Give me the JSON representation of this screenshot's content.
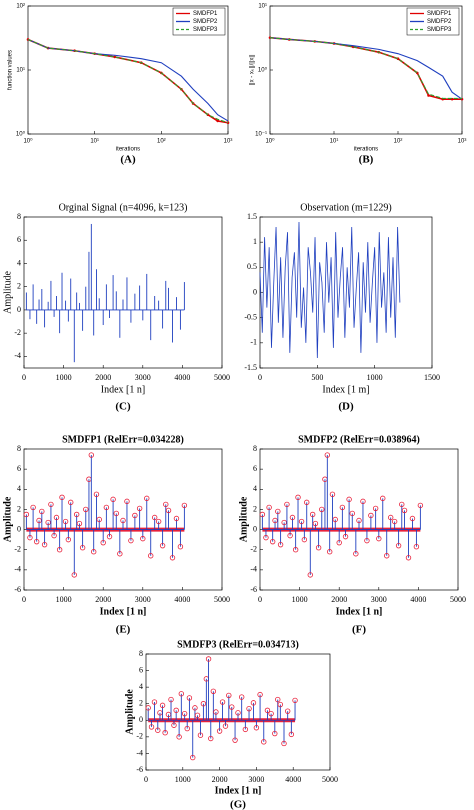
{
  "chart_data": [
    {
      "type": "line",
      "caption": "(A)",
      "xlabel": "iterations",
      "ylabel": "function values",
      "xscale": "log",
      "yscale": "log",
      "xlim": [
        1,
        1000
      ],
      "ylim": [
        1,
        100
      ],
      "xticks": [
        {
          "value": 1,
          "label": "10⁰"
        },
        {
          "value": 10,
          "label": "10¹"
        },
        {
          "value": 100,
          "label": "10²"
        },
        {
          "value": 1000,
          "label": "10³"
        }
      ],
      "yticks": [
        {
          "value": 1,
          "label": "10⁰"
        },
        {
          "value": 10,
          "label": "10¹"
        },
        {
          "value": 100,
          "label": "10²"
        }
      ],
      "legend": "upper right",
      "x": [
        1,
        2,
        5,
        10,
        20,
        50,
        100,
        200,
        300,
        500,
        700,
        1000
      ],
      "series": [
        {
          "name": "SMDFP1",
          "color": "#e00000",
          "marker": true,
          "values": [
            30,
            22,
            20,
            18,
            16,
            13,
            9,
            5,
            3,
            2,
            1.6,
            1.5
          ]
        },
        {
          "name": "SMDFP2",
          "color": "#1f3fbf",
          "values": [
            30,
            22,
            20,
            18,
            17,
            15,
            13,
            8,
            5,
            3,
            2,
            1.6
          ]
        },
        {
          "name": "SMDFP3",
          "color": "#2ca02c",
          "dashed": true,
          "values": [
            30,
            22,
            20,
            18,
            16,
            13,
            9,
            5,
            3,
            2,
            1.7,
            1.5
          ]
        }
      ]
    },
    {
      "type": "line",
      "caption": "(B)",
      "xlabel": "iterations",
      "ylabel": "||x - xₖ||/||x||",
      "xscale": "log",
      "yscale": "log",
      "xlim": [
        1,
        1000
      ],
      "ylim": [
        0.1,
        10
      ],
      "xticks": [
        {
          "value": 1,
          "label": "10⁰"
        },
        {
          "value": 10,
          "label": "10¹"
        },
        {
          "value": 100,
          "label": "10²"
        },
        {
          "value": 1000,
          "label": "10³"
        }
      ],
      "yticks": [
        {
          "value": 0.1,
          "label": "10⁻¹"
        },
        {
          "value": 1,
          "label": "10⁰"
        },
        {
          "value": 10,
          "label": "10¹"
        }
      ],
      "legend": "upper right",
      "x": [
        1,
        2,
        5,
        10,
        20,
        50,
        100,
        200,
        300,
        500,
        700,
        1000
      ],
      "series": [
        {
          "name": "SMDFP1",
          "color": "#e00000",
          "marker": true,
          "values": [
            3.2,
            3,
            2.8,
            2.6,
            2.3,
            1.9,
            1.5,
            0.9,
            0.4,
            0.35,
            0.35,
            0.35
          ]
        },
        {
          "name": "SMDFP2",
          "color": "#1f3fbf",
          "values": [
            3.2,
            3,
            2.8,
            2.6,
            2.4,
            2.1,
            1.8,
            1.4,
            1.1,
            0.8,
            0.45,
            0.35
          ]
        },
        {
          "name": "SMDFP3",
          "color": "#2ca02c",
          "dashed": true,
          "values": [
            3.2,
            3,
            2.8,
            2.6,
            2.3,
            1.9,
            1.5,
            0.9,
            0.42,
            0.36,
            0.36,
            0.36
          ]
        }
      ]
    },
    {
      "type": "stem",
      "title": "Orginal Signal (n=4096, k=123)",
      "caption": "(C)",
      "xlabel": "Index [1 n]",
      "ylabel": "Amplitude",
      "xlim": [
        0,
        5000
      ],
      "ylim": [
        -5,
        8
      ],
      "xticks": [
        0,
        1000,
        2000,
        3000,
        4000,
        5000
      ],
      "yticks": [
        -4,
        -2,
        0,
        2,
        4,
        6,
        8
      ],
      "color": "#1f3fbf",
      "marker": false,
      "x": [
        60,
        150,
        230,
        320,
        380,
        450,
        520,
        610,
        680,
        760,
        820,
        900,
        960,
        1050,
        1120,
        1180,
        1270,
        1330,
        1400,
        1480,
        1560,
        1640,
        1700,
        1760,
        1830,
        1900,
        2000,
        2080,
        2160,
        2250,
        2330,
        2420,
        2500,
        2600,
        2700,
        2800,
        2920,
        3000,
        3100,
        3200,
        3300,
        3400,
        3500,
        3580,
        3650,
        3750,
        3850,
        3950,
        4050
      ],
      "values": [
        1.5,
        -0.8,
        2.2,
        -1.2,
        0.9,
        1.8,
        -1.5,
        0.7,
        2.5,
        -0.6,
        1.2,
        -2.0,
        3.2,
        0.8,
        -1.0,
        2.7,
        -4.5,
        1.5,
        0.6,
        -1.8,
        2.0,
        5.0,
        7.4,
        -2.2,
        3.5,
        1.0,
        -1.3,
        2.2,
        -0.7,
        3.0,
        1.6,
        -2.4,
        0.9,
        2.8,
        -1.1,
        1.4,
        2.1,
        -0.9,
        3.1,
        -2.6,
        1.2,
        0.8,
        -1.6,
        2.5,
        1.9,
        -2.8,
        1.1,
        -1.7,
        2.4
      ]
    },
    {
      "type": "line",
      "title": "Observation (m=1229)",
      "caption": "(D)",
      "xlabel": "Index [1 m]",
      "xlim": [
        0,
        1500
      ],
      "ylim": [
        -1.5,
        1.5
      ],
      "xticks": [
        0,
        500,
        1000,
        1500
      ],
      "yticks": [
        -1.5,
        -1,
        -0.5,
        0,
        0.5,
        1,
        1.5
      ],
      "color": "#1f3fbf",
      "x": [
        0,
        20,
        40,
        60,
        80,
        100,
        120,
        140,
        160,
        180,
        200,
        220,
        240,
        260,
        280,
        300,
        320,
        340,
        360,
        380,
        400,
        420,
        440,
        460,
        480,
        500,
        520,
        540,
        560,
        580,
        600,
        620,
        640,
        660,
        680,
        700,
        720,
        740,
        760,
        780,
        800,
        820,
        840,
        860,
        880,
        900,
        920,
        940,
        960,
        980,
        1000,
        1020,
        1040,
        1060,
        1080,
        1100,
        1120,
        1140,
        1160,
        1180,
        1200,
        1220
      ],
      "values": [
        0.4,
        -0.8,
        1.1,
        -0.3,
        0.9,
        -1.1,
        0.2,
        1.3,
        -0.6,
        0.7,
        -0.9,
        0.5,
        1.2,
        -1.2,
        0.3,
        0.8,
        -0.5,
        1.4,
        -0.7,
        0.1,
        -1.0,
        0.9,
        0.4,
        -0.4,
        1.1,
        -1.3,
        0.6,
        0.2,
        -0.8,
        1.0,
        -0.2,
        0.7,
        -1.1,
        1.2,
        -0.5,
        0.3,
        0.9,
        -0.9,
        0.5,
        -0.3,
        1.3,
        -0.7,
        0.1,
        0.8,
        -1.2,
        0.6,
        -0.4,
        1.0,
        -0.6,
        0.2,
        0.9,
        -1.0,
        1.2,
        -0.3,
        0.4,
        -0.8,
        1.1,
        -0.5,
        0.7,
        -0.9,
        1.3,
        -0.2
      ]
    },
    {
      "type": "stem",
      "title": "SMDFP1 (RelErr=0.034228)",
      "caption": "(E)",
      "xlabel": "Index [1 n]",
      "ylabel": "Amplitude",
      "xlim": [
        0,
        5000
      ],
      "ylim": [
        -6,
        8
      ],
      "xticks": [
        0,
        1000,
        2000,
        3000,
        4000,
        5000
      ],
      "yticks": [
        -6,
        -4,
        -2,
        0,
        2,
        4,
        6,
        8
      ],
      "color": "#1f3fbf",
      "marker": true,
      "marker_color": "#e8203a",
      "x": [
        60,
        150,
        230,
        320,
        380,
        450,
        520,
        610,
        680,
        760,
        820,
        900,
        960,
        1050,
        1120,
        1180,
        1270,
        1330,
        1400,
        1480,
        1560,
        1640,
        1700,
        1760,
        1830,
        1900,
        2000,
        2080,
        2160,
        2250,
        2330,
        2420,
        2500,
        2600,
        2700,
        2800,
        2920,
        3000,
        3100,
        3200,
        3300,
        3400,
        3500,
        3580,
        3650,
        3750,
        3850,
        3950,
        4050
      ],
      "values": [
        1.5,
        -0.8,
        2.2,
        -1.2,
        0.9,
        1.8,
        -1.5,
        0.7,
        2.5,
        -0.6,
        1.2,
        -2.0,
        3.2,
        0.8,
        -1.0,
        2.7,
        -4.5,
        1.5,
        0.6,
        -1.8,
        2.0,
        5.0,
        7.4,
        -2.2,
        3.5,
        1.0,
        -1.3,
        2.2,
        -0.7,
        3.0,
        1.6,
        -2.4,
        0.9,
        2.8,
        -1.1,
        1.4,
        2.1,
        -0.9,
        3.1,
        -2.6,
        1.2,
        0.8,
        -1.6,
        2.5,
        1.9,
        -2.8,
        1.1,
        -1.7,
        2.4
      ]
    },
    {
      "type": "stem",
      "title": "SMDFP2 (RelErr=0.038964)",
      "caption": "(F)",
      "xlabel": "Index [1 n]",
      "ylabel": "Amplitude",
      "xlim": [
        0,
        5000
      ],
      "ylim": [
        -6,
        8
      ],
      "xticks": [
        0,
        1000,
        2000,
        3000,
        4000,
        5000
      ],
      "yticks": [
        -6,
        -4,
        -2,
        0,
        2,
        4,
        6,
        8
      ],
      "color": "#1f3fbf",
      "marker": true,
      "marker_color": "#e8203a",
      "x": [
        60,
        150,
        230,
        320,
        380,
        450,
        520,
        610,
        680,
        760,
        820,
        900,
        960,
        1050,
        1120,
        1180,
        1270,
        1330,
        1400,
        1480,
        1560,
        1640,
        1700,
        1760,
        1830,
        1900,
        2000,
        2080,
        2160,
        2250,
        2330,
        2420,
        2500,
        2600,
        2700,
        2800,
        2920,
        3000,
        3100,
        3200,
        3300,
        3400,
        3500,
        3580,
        3650,
        3750,
        3850,
        3950,
        4050
      ],
      "values": [
        1.5,
        -0.8,
        2.2,
        -1.2,
        0.9,
        1.8,
        -1.5,
        0.7,
        2.5,
        -0.6,
        1.2,
        -2.0,
        3.2,
        0.8,
        -1.0,
        2.7,
        -4.5,
        1.5,
        0.6,
        -1.8,
        2.0,
        5.0,
        7.4,
        -2.2,
        3.5,
        1.0,
        -1.3,
        2.2,
        -0.7,
        3.0,
        1.6,
        -2.4,
        0.9,
        2.8,
        -1.1,
        1.4,
        2.1,
        -0.9,
        3.1,
        -2.6,
        1.2,
        0.8,
        -1.6,
        2.5,
        1.9,
        -2.8,
        1.1,
        -1.7,
        2.4
      ]
    },
    {
      "type": "stem",
      "title": "SMDFP3 (RelErr=0.034713)",
      "caption": "(G)",
      "xlabel": "Index [1 n]",
      "ylabel": "Amplitude",
      "xlim": [
        0,
        5000
      ],
      "ylim": [
        -6,
        8
      ],
      "xticks": [
        0,
        1000,
        2000,
        3000,
        4000,
        5000
      ],
      "yticks": [
        -6,
        -4,
        -2,
        0,
        2,
        4,
        6,
        8
      ],
      "color": "#1f3fbf",
      "marker": true,
      "marker_color": "#e8203a",
      "x": [
        60,
        150,
        230,
        320,
        380,
        450,
        520,
        610,
        680,
        760,
        820,
        900,
        960,
        1050,
        1120,
        1180,
        1270,
        1330,
        1400,
        1480,
        1560,
        1640,
        1700,
        1760,
        1830,
        1900,
        2000,
        2080,
        2160,
        2250,
        2330,
        2420,
        2500,
        2600,
        2700,
        2800,
        2920,
        3000,
        3100,
        3200,
        3300,
        3400,
        3500,
        3580,
        3650,
        3750,
        3850,
        3950,
        4050
      ],
      "values": [
        1.5,
        -0.8,
        2.2,
        -1.2,
        0.9,
        1.8,
        -1.5,
        0.7,
        2.5,
        -0.6,
        1.2,
        -2.0,
        3.2,
        0.8,
        -1.0,
        2.7,
        -4.5,
        1.5,
        0.6,
        -1.8,
        2.0,
        5.0,
        7.4,
        -2.2,
        3.5,
        1.0,
        -1.3,
        2.2,
        -0.7,
        3.0,
        1.6,
        -2.4,
        0.9,
        2.8,
        -1.1,
        1.4,
        2.1,
        -0.9,
        3.1,
        -2.6,
        1.2,
        0.8,
        -1.6,
        2.5,
        1.9,
        -2.8,
        1.1,
        -1.7,
        2.4
      ]
    }
  ]
}
